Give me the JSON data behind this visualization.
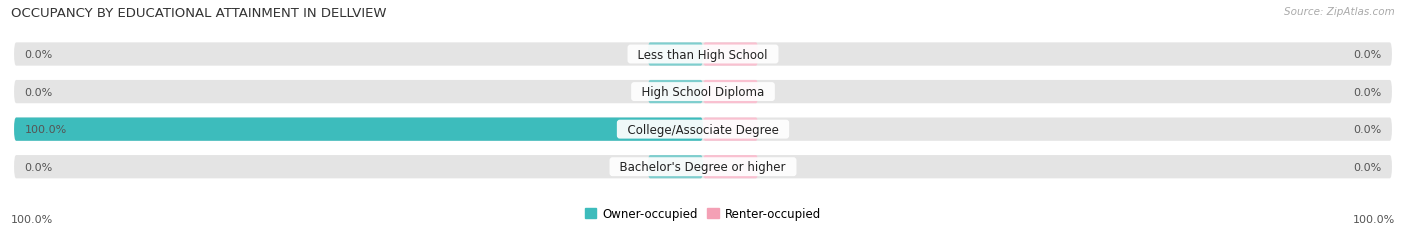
{
  "title": "OCCUPANCY BY EDUCATIONAL ATTAINMENT IN DELLVIEW",
  "source": "Source: ZipAtlas.com",
  "categories": [
    "Less than High School",
    "High School Diploma",
    "College/Associate Degree",
    "Bachelor's Degree or higher"
  ],
  "owner_values": [
    0.0,
    0.0,
    100.0,
    0.0
  ],
  "renter_values": [
    0.0,
    0.0,
    0.0,
    0.0
  ],
  "owner_color": "#3dbcbc",
  "renter_color": "#f4a0b5",
  "owner_stub_color": "#7ecece",
  "renter_stub_color": "#f9c0d0",
  "bar_bg_color": "#e4e4e4",
  "bar_height": 0.62,
  "xlim_left": -100,
  "xlim_right": 100,
  "stub_size": 8.0,
  "label_color": "#555555",
  "title_fontsize": 9.5,
  "cat_fontsize": 8.5,
  "val_fontsize": 8.0,
  "source_fontsize": 7.5,
  "legend_fontsize": 8.5,
  "bg_color": "#ffffff",
  "bottom_left_label": "100.0%",
  "bottom_right_label": "100.0%"
}
